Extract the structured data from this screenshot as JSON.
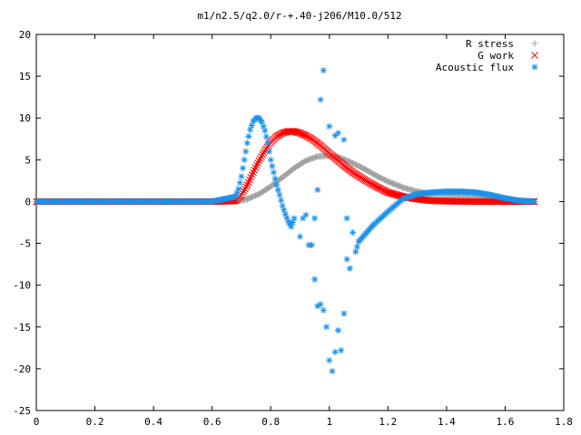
{
  "chart_data": {
    "type": "scatter",
    "title": "m1/n2.5/q2.0/r-+.40-j206/M10.0/512",
    "xlabel": "",
    "ylabel": "",
    "xlim": [
      0,
      1.8
    ],
    "ylim": [
      -25,
      20
    ],
    "xticks": [
      "0",
      "0.2",
      "0.4",
      "0.6",
      "0.8",
      "1",
      "1.2",
      "1.4",
      "1.6",
      "1.8"
    ],
    "yticks": [
      "20",
      "15",
      "10",
      "5",
      "0",
      "-5",
      "-10",
      "-15",
      "-20",
      "-25"
    ],
    "legend_position": "top-right",
    "grid": false,
    "series": [
      {
        "name": "R stress",
        "marker": "plus",
        "color": "#a0a0a0",
        "x": [
          0.0,
          0.2,
          0.4,
          0.6,
          0.68,
          0.72,
          0.76,
          0.8,
          0.84,
          0.88,
          0.92,
          0.96,
          1.0,
          1.04,
          1.08,
          1.12,
          1.16,
          1.2,
          1.25,
          1.3,
          1.35,
          1.4,
          1.45,
          1.5,
          1.55,
          1.6,
          1.65,
          1.7
        ],
        "y": [
          0.0,
          0.0,
          0.0,
          0.0,
          0.0,
          0.3,
          0.9,
          1.8,
          2.9,
          4.0,
          4.9,
          5.4,
          5.5,
          5.2,
          4.6,
          3.9,
          3.1,
          2.4,
          1.7,
          1.2,
          0.9,
          0.8,
          0.7,
          0.6,
          0.4,
          0.2,
          0.1,
          0.0
        ]
      },
      {
        "name": "G work",
        "marker": "cross",
        "color": "#ff0000",
        "x": [
          0.0,
          0.2,
          0.4,
          0.6,
          0.68,
          0.7,
          0.72,
          0.74,
          0.76,
          0.78,
          0.8,
          0.82,
          0.84,
          0.86,
          0.88,
          0.9,
          0.92,
          0.94,
          0.96,
          0.98,
          1.0,
          1.02,
          1.05,
          1.08,
          1.12,
          1.16,
          1.2,
          1.25,
          1.3,
          1.35,
          1.4,
          1.5,
          1.6,
          1.7
        ],
        "y": [
          0.0,
          0.0,
          0.0,
          0.0,
          0.1,
          0.8,
          2.0,
          3.5,
          4.9,
          6.1,
          7.1,
          7.8,
          8.2,
          8.4,
          8.4,
          8.2,
          7.9,
          7.5,
          7.0,
          6.4,
          5.8,
          5.2,
          4.3,
          3.5,
          2.6,
          1.8,
          1.1,
          0.6,
          0.3,
          0.1,
          0.05,
          0.0,
          0.0,
          0.0
        ]
      },
      {
        "name": "Acoustic flux",
        "marker": "star",
        "color": "#1e90e8",
        "x": [
          0.0,
          0.2,
          0.4,
          0.6,
          0.68,
          0.69,
          0.7,
          0.71,
          0.72,
          0.73,
          0.74,
          0.75,
          0.76,
          0.77,
          0.78,
          0.79,
          0.8,
          0.81,
          0.82,
          0.83,
          0.84,
          0.85,
          0.86,
          0.87,
          0.88,
          0.9,
          0.91,
          0.92,
          0.93,
          0.94,
          0.95,
          0.95,
          0.96,
          0.96,
          0.97,
          0.97,
          0.98,
          0.98,
          0.99,
          1.0,
          1.0,
          1.01,
          1.02,
          1.02,
          1.03,
          1.03,
          1.04,
          1.05,
          1.05,
          1.06,
          1.06,
          1.07,
          1.08,
          1.09,
          1.1,
          1.12,
          1.15,
          1.2,
          1.25,
          1.3,
          1.35,
          1.4,
          1.45,
          1.5,
          1.55,
          1.6,
          1.65,
          1.7
        ],
        "y": [
          0.0,
          0.0,
          0.0,
          0.0,
          0.6,
          1.5,
          3.0,
          5.0,
          7.0,
          8.6,
          9.6,
          10.0,
          10.0,
          9.5,
          8.5,
          7.0,
          5.0,
          3.5,
          2.0,
          0.8,
          -0.5,
          -1.5,
          -2.4,
          -3.0,
          -2.0,
          -4.2,
          -2.0,
          -1.6,
          -5.2,
          -5.2,
          -2.0,
          -9.3,
          1.4,
          -12.5,
          12.2,
          -12.3,
          15.7,
          -13.0,
          -15.0,
          -19.0,
          9.0,
          -20.3,
          7.9,
          -18.0,
          8.2,
          -15.4,
          -17.8,
          7.4,
          -13.4,
          -2.0,
          -6.9,
          -8.0,
          -3.7,
          -6.0,
          -4.8,
          -4.0,
          -2.8,
          -1.2,
          0.3,
          0.9,
          1.1,
          1.2,
          1.2,
          1.1,
          0.8,
          0.4,
          0.1,
          0.0
        ]
      }
    ]
  }
}
